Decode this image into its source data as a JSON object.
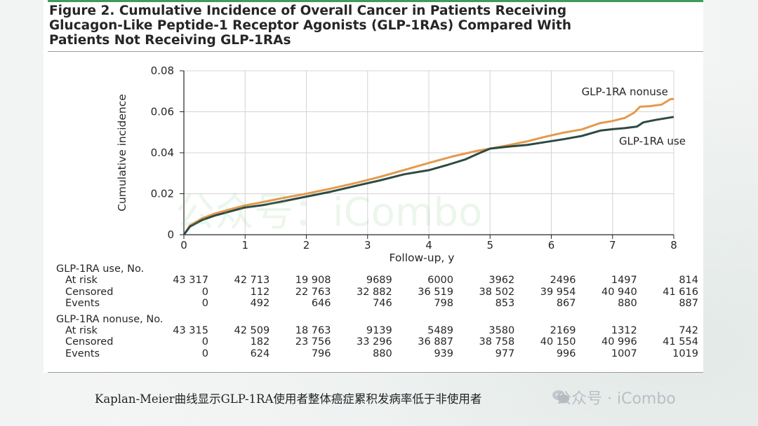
{
  "figure": {
    "title_lines": [
      "Figure 2. Cumulative Incidence of Overall Cancer in Patients Receiving",
      "Glucagon-Like Peptide-1 Receptor Agonists (GLP-1RAs) Compared With",
      "Patients Not Receiving GLP-1RAs"
    ]
  },
  "chart_data": {
    "type": "line",
    "title": "Figure 2. Cumulative Incidence of Overall Cancer in Patients Receiving Glucagon-Like Peptide-1 Receptor Agonists (GLP-1RAs) Compared With Patients Not Receiving GLP-1RAs",
    "xlabel": "Follow-up, y",
    "ylabel": "Cumulative incidence",
    "xlim": [
      0,
      8
    ],
    "ylim": [
      0,
      0.08
    ],
    "x_ticks": [
      0,
      1,
      2,
      3,
      4,
      5,
      6,
      7,
      8
    ],
    "y_ticks": [
      0,
      0.02,
      0.04,
      0.06,
      0.08
    ],
    "y_tick_labels": [
      "0",
      "0.02",
      "0.04",
      "0.06",
      "0.08"
    ],
    "grid": true,
    "series": [
      {
        "name": "GLP-1RA nonuse",
        "color": "#e39a4c",
        "x": [
          0,
          0.1,
          0.3,
          0.5,
          0.75,
          1.0,
          1.3,
          1.6,
          2.0,
          2.4,
          2.8,
          3.2,
          3.6,
          4.0,
          4.4,
          4.8,
          5.0,
          5.3,
          5.6,
          5.9,
          6.2,
          6.5,
          6.8,
          7.0,
          7.2,
          7.35,
          7.45,
          7.6,
          7.8,
          7.95,
          8.0
        ],
        "y": [
          0,
          0.0045,
          0.008,
          0.0103,
          0.0123,
          0.0143,
          0.016,
          0.0178,
          0.02,
          0.0225,
          0.0252,
          0.0282,
          0.0316,
          0.035,
          0.0383,
          0.041,
          0.042,
          0.0437,
          0.0455,
          0.0478,
          0.0498,
          0.0514,
          0.0545,
          0.0555,
          0.057,
          0.0595,
          0.0625,
          0.0627,
          0.0635,
          0.0662,
          0.0662
        ]
      },
      {
        "name": "GLP-1RA use",
        "color": "#2d4a44",
        "x": [
          0,
          0.1,
          0.3,
          0.5,
          0.75,
          1.0,
          1.3,
          1.6,
          2.0,
          2.4,
          2.8,
          3.2,
          3.6,
          4.0,
          4.3,
          4.6,
          4.8,
          5.0,
          5.3,
          5.6,
          5.9,
          6.2,
          6.5,
          6.8,
          7.0,
          7.2,
          7.4,
          7.5,
          7.7,
          7.9,
          8.0
        ],
        "y": [
          0,
          0.004,
          0.0072,
          0.0093,
          0.0113,
          0.0133,
          0.0145,
          0.0162,
          0.0186,
          0.021,
          0.0238,
          0.0265,
          0.0295,
          0.0315,
          0.034,
          0.0368,
          0.0395,
          0.042,
          0.043,
          0.0438,
          0.0452,
          0.0466,
          0.0482,
          0.0508,
          0.0515,
          0.052,
          0.0528,
          0.0548,
          0.056,
          0.057,
          0.0575
        ]
      }
    ],
    "annotations": [
      {
        "text": "GLP-1RA nonuse",
        "series": "GLP-1RA nonuse"
      },
      {
        "text": "GLP-1RA use",
        "series": "GLP-1RA use"
      }
    ]
  },
  "risk_table": {
    "time_points": [
      0,
      1,
      2,
      3,
      4,
      5,
      6,
      7,
      8
    ],
    "groups": [
      {
        "title": "GLP-1RA use, No.",
        "rows": [
          {
            "label": "At risk",
            "values": [
              "43 317",
              "42 713",
              "19 908",
              "9689",
              "6000",
              "3962",
              "2496",
              "1497",
              "814"
            ]
          },
          {
            "label": "Censored",
            "values": [
              "0",
              "112",
              "22 763",
              "32 882",
              "36 519",
              "38 502",
              "39 954",
              "40 940",
              "41 616"
            ]
          },
          {
            "label": "Events",
            "values": [
              "0",
              "492",
              "646",
              "746",
              "798",
              "853",
              "867",
              "880",
              "887"
            ]
          }
        ]
      },
      {
        "title": "GLP-1RA nonuse, No.",
        "rows": [
          {
            "label": "At risk",
            "values": [
              "43 315",
              "42 509",
              "18 763",
              "9139",
              "5489",
              "3580",
              "2169",
              "1312",
              "742"
            ]
          },
          {
            "label": "Censored",
            "values": [
              "0",
              "182",
              "23 756",
              "33 296",
              "36 887",
              "38 758",
              "40 150",
              "40 996",
              "41 554"
            ]
          },
          {
            "label": "Events",
            "values": [
              "0",
              "624",
              "796",
              "880",
              "939",
              "977",
              "996",
              "1007",
              "1019"
            ]
          }
        ]
      }
    ]
  },
  "caption": "Kaplan-Meier曲线显示GLP-1RA使用者整体癌症累积发病率低于非使用者",
  "watermarks": {
    "center_text": "公众号：iCombo",
    "corner_text": "公众号 · iCombo"
  }
}
